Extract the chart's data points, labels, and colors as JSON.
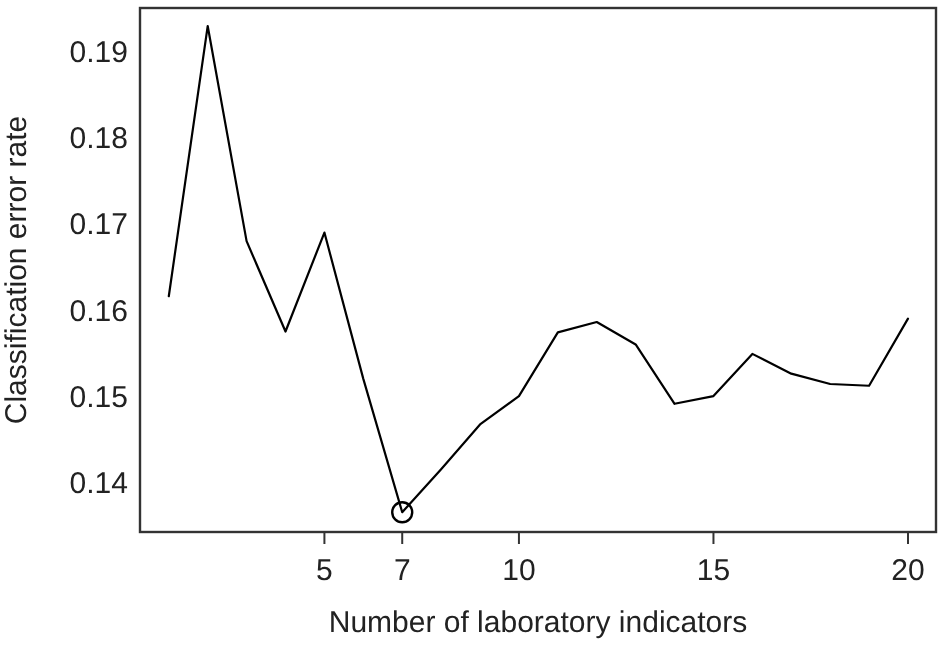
{
  "chart_data": {
    "type": "line",
    "xlabel": "Number of laboratory indicators",
    "ylabel": "Classification error rate",
    "xlim": [
      0.26,
      20.72
    ],
    "ylim": [
      0.1342,
      0.1951
    ],
    "xticks": [
      5,
      7,
      10,
      15,
      20
    ],
    "yticks": [
      0.14,
      0.15,
      0.16,
      0.17,
      0.18,
      0.19
    ],
    "grid": false,
    "line_style": "solid",
    "series": [
      {
        "color": "#000000",
        "marker": "none",
        "x": [
          1,
          2,
          3,
          4,
          5,
          6,
          7,
          8,
          9,
          10,
          11,
          12,
          13,
          14,
          15,
          16,
          17,
          18,
          19,
          20
        ],
        "values": [
          0.1616,
          0.193,
          0.168,
          0.1575,
          0.169,
          0.152,
          0.1365,
          0.1415,
          0.1467,
          0.15,
          0.1574,
          0.1586,
          0.156,
          0.1491,
          0.15,
          0.1549,
          0.1526,
          0.1514,
          0.1512,
          0.159
        ]
      },
      {
        "type": "scatter",
        "color": "#000000",
        "marker": "circle",
        "x": [
          7
        ],
        "values": [
          0.1365
        ]
      }
    ]
  }
}
